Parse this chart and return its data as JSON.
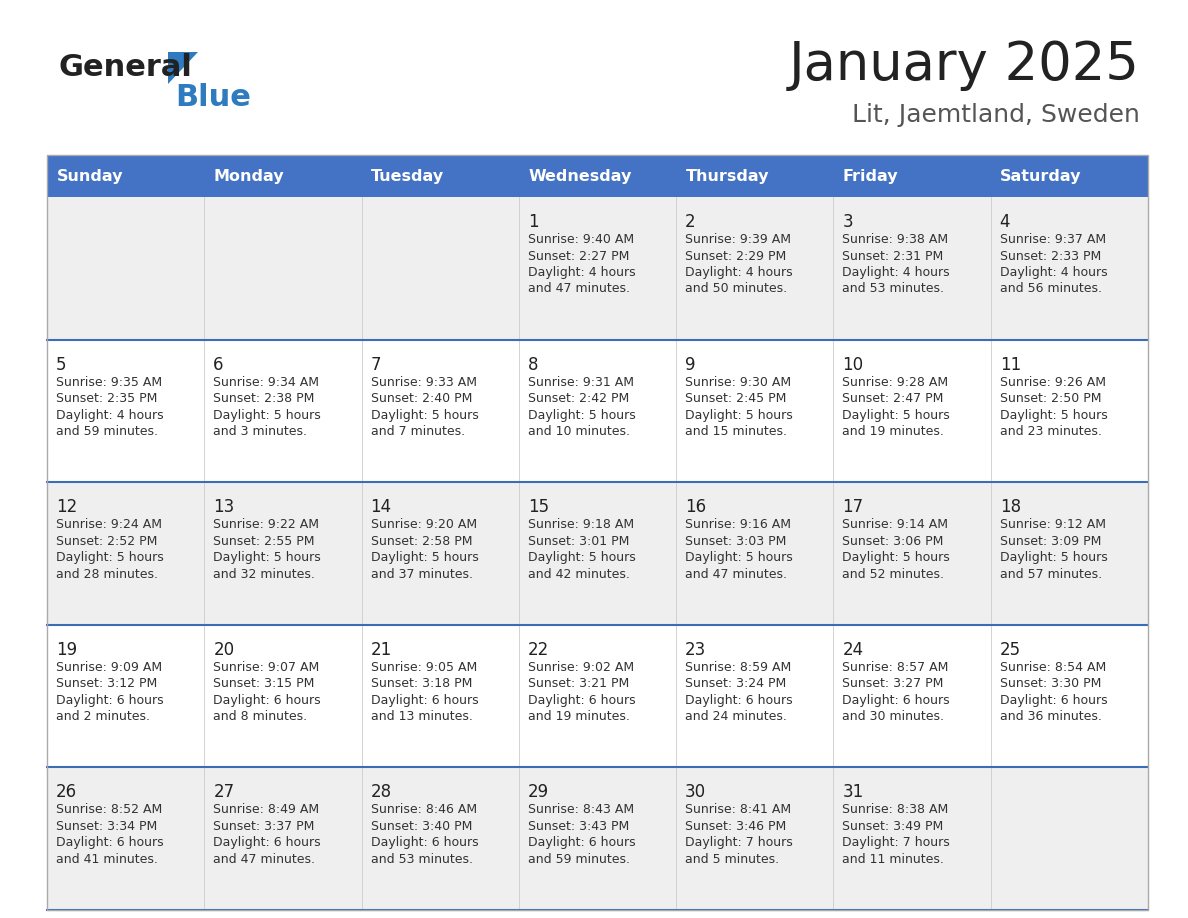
{
  "title": "January 2025",
  "subtitle": "Lit, Jaemtland, Sweden",
  "header_bg": "#4472C4",
  "header_text_color": "#FFFFFF",
  "days_of_week": [
    "Sunday",
    "Monday",
    "Tuesday",
    "Wednesday",
    "Thursday",
    "Friday",
    "Saturday"
  ],
  "row_bg_even": "#EFEFEF",
  "row_bg_odd": "#FFFFFF",
  "title_color": "#222222",
  "subtitle_color": "#555555",
  "day_number_color": "#222222",
  "cell_text_color": "#333333",
  "logo_general_color": "#222222",
  "logo_blue_color": "#2E7BBF",
  "row_divider_color": "#3A6DB5",
  "calendar_data": {
    "1": {
      "sunrise": "9:40 AM",
      "sunset": "2:27 PM",
      "daylight_h": "4 hours",
      "daylight_m": "47 minutes."
    },
    "2": {
      "sunrise": "9:39 AM",
      "sunset": "2:29 PM",
      "daylight_h": "4 hours",
      "daylight_m": "50 minutes."
    },
    "3": {
      "sunrise": "9:38 AM",
      "sunset": "2:31 PM",
      "daylight_h": "4 hours",
      "daylight_m": "53 minutes."
    },
    "4": {
      "sunrise": "9:37 AM",
      "sunset": "2:33 PM",
      "daylight_h": "4 hours",
      "daylight_m": "56 minutes."
    },
    "5": {
      "sunrise": "9:35 AM",
      "sunset": "2:35 PM",
      "daylight_h": "4 hours",
      "daylight_m": "59 minutes."
    },
    "6": {
      "sunrise": "9:34 AM",
      "sunset": "2:38 PM",
      "daylight_h": "5 hours",
      "daylight_m": "3 minutes."
    },
    "7": {
      "sunrise": "9:33 AM",
      "sunset": "2:40 PM",
      "daylight_h": "5 hours",
      "daylight_m": "7 minutes."
    },
    "8": {
      "sunrise": "9:31 AM",
      "sunset": "2:42 PM",
      "daylight_h": "5 hours",
      "daylight_m": "10 minutes."
    },
    "9": {
      "sunrise": "9:30 AM",
      "sunset": "2:45 PM",
      "daylight_h": "5 hours",
      "daylight_m": "15 minutes."
    },
    "10": {
      "sunrise": "9:28 AM",
      "sunset": "2:47 PM",
      "daylight_h": "5 hours",
      "daylight_m": "19 minutes."
    },
    "11": {
      "sunrise": "9:26 AM",
      "sunset": "2:50 PM",
      "daylight_h": "5 hours",
      "daylight_m": "23 minutes."
    },
    "12": {
      "sunrise": "9:24 AM",
      "sunset": "2:52 PM",
      "daylight_h": "5 hours",
      "daylight_m": "28 minutes."
    },
    "13": {
      "sunrise": "9:22 AM",
      "sunset": "2:55 PM",
      "daylight_h": "5 hours",
      "daylight_m": "32 minutes."
    },
    "14": {
      "sunrise": "9:20 AM",
      "sunset": "2:58 PM",
      "daylight_h": "5 hours",
      "daylight_m": "37 minutes."
    },
    "15": {
      "sunrise": "9:18 AM",
      "sunset": "3:01 PM",
      "daylight_h": "5 hours",
      "daylight_m": "42 minutes."
    },
    "16": {
      "sunrise": "9:16 AM",
      "sunset": "3:03 PM",
      "daylight_h": "5 hours",
      "daylight_m": "47 minutes."
    },
    "17": {
      "sunrise": "9:14 AM",
      "sunset": "3:06 PM",
      "daylight_h": "5 hours",
      "daylight_m": "52 minutes."
    },
    "18": {
      "sunrise": "9:12 AM",
      "sunset": "3:09 PM",
      "daylight_h": "5 hours",
      "daylight_m": "57 minutes."
    },
    "19": {
      "sunrise": "9:09 AM",
      "sunset": "3:12 PM",
      "daylight_h": "6 hours",
      "daylight_m": "2 minutes."
    },
    "20": {
      "sunrise": "9:07 AM",
      "sunset": "3:15 PM",
      "daylight_h": "6 hours",
      "daylight_m": "8 minutes."
    },
    "21": {
      "sunrise": "9:05 AM",
      "sunset": "3:18 PM",
      "daylight_h": "6 hours",
      "daylight_m": "13 minutes."
    },
    "22": {
      "sunrise": "9:02 AM",
      "sunset": "3:21 PM",
      "daylight_h": "6 hours",
      "daylight_m": "19 minutes."
    },
    "23": {
      "sunrise": "8:59 AM",
      "sunset": "3:24 PM",
      "daylight_h": "6 hours",
      "daylight_m": "24 minutes."
    },
    "24": {
      "sunrise": "8:57 AM",
      "sunset": "3:27 PM",
      "daylight_h": "6 hours",
      "daylight_m": "30 minutes."
    },
    "25": {
      "sunrise": "8:54 AM",
      "sunset": "3:30 PM",
      "daylight_h": "6 hours",
      "daylight_m": "36 minutes."
    },
    "26": {
      "sunrise": "8:52 AM",
      "sunset": "3:34 PM",
      "daylight_h": "6 hours",
      "daylight_m": "41 minutes."
    },
    "27": {
      "sunrise": "8:49 AM",
      "sunset": "3:37 PM",
      "daylight_h": "6 hours",
      "daylight_m": "47 minutes."
    },
    "28": {
      "sunrise": "8:46 AM",
      "sunset": "3:40 PM",
      "daylight_h": "6 hours",
      "daylight_m": "53 minutes."
    },
    "29": {
      "sunrise": "8:43 AM",
      "sunset": "3:43 PM",
      "daylight_h": "6 hours",
      "daylight_m": "59 minutes."
    },
    "30": {
      "sunrise": "8:41 AM",
      "sunset": "3:46 PM",
      "daylight_h": "7 hours",
      "daylight_m": "5 minutes."
    },
    "31": {
      "sunrise": "8:38 AM",
      "sunset": "3:49 PM",
      "daylight_h": "7 hours",
      "daylight_m": "11 minutes."
    }
  },
  "calendar_weeks": [
    [
      null,
      null,
      null,
      1,
      2,
      3,
      4
    ],
    [
      5,
      6,
      7,
      8,
      9,
      10,
      11
    ],
    [
      12,
      13,
      14,
      15,
      16,
      17,
      18
    ],
    [
      19,
      20,
      21,
      22,
      23,
      24,
      25
    ],
    [
      26,
      27,
      28,
      29,
      30,
      31,
      null
    ]
  ]
}
